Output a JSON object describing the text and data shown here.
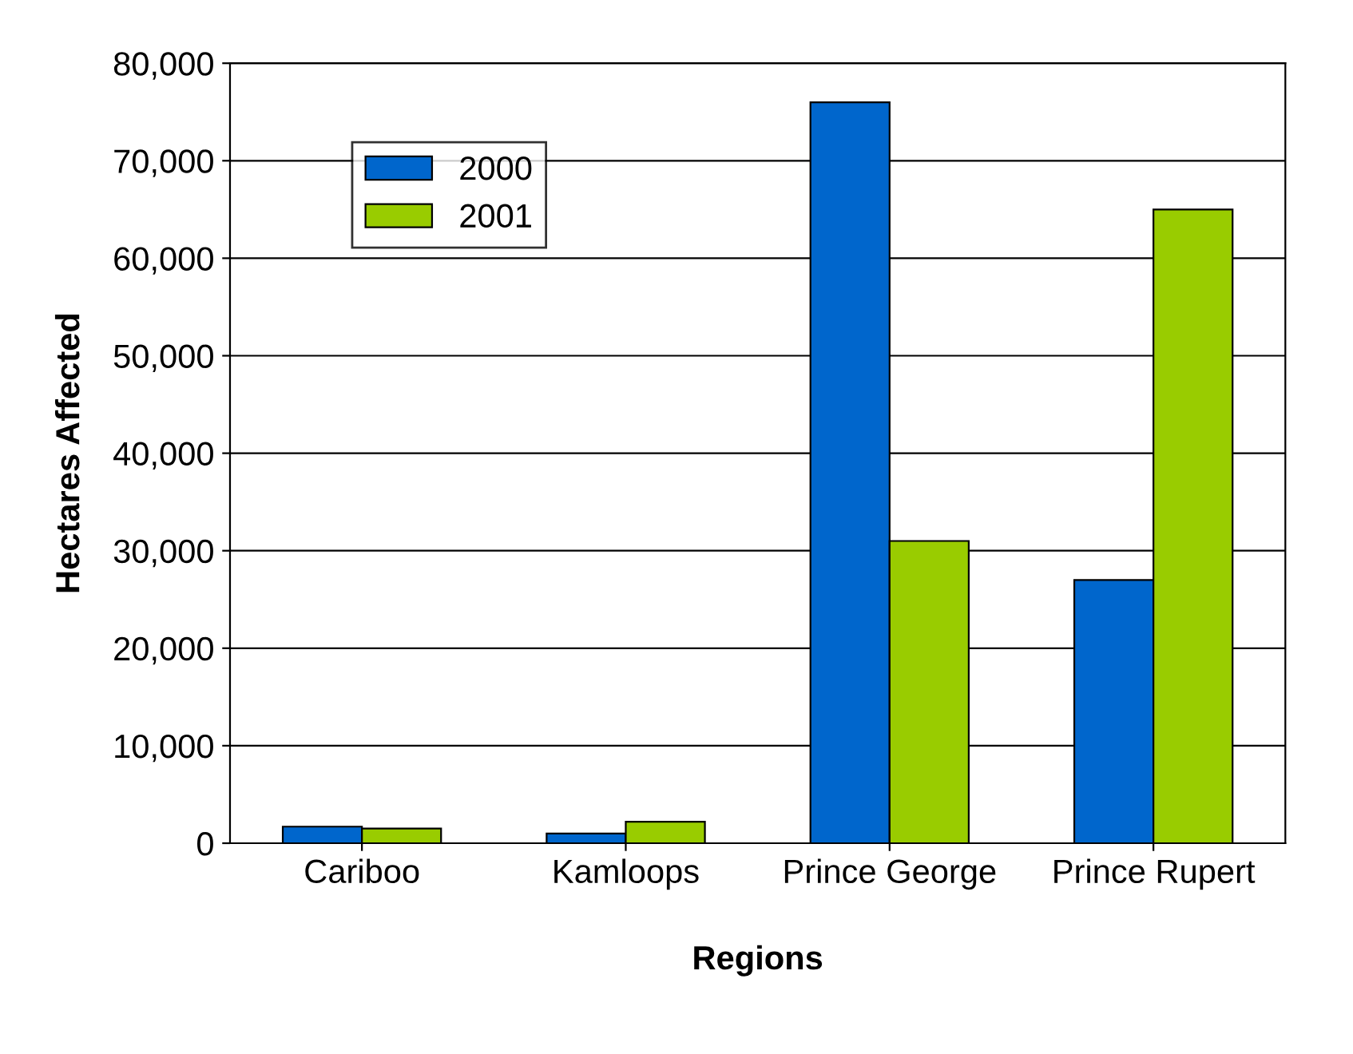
{
  "chart_data": {
    "type": "bar",
    "xlabel": "Regions",
    "ylabel": "Hectares Affected",
    "categories": [
      "Cariboo",
      "Kamloops",
      "Prince George",
      "Prince Rupert"
    ],
    "series": [
      {
        "name": "2000",
        "color": "#0066cc",
        "values": [
          1700,
          1000,
          76000,
          27000
        ]
      },
      {
        "name": "2001",
        "color": "#99cc00",
        "values": [
          1500,
          2200,
          31000,
          65000
        ]
      }
    ],
    "ylim": [
      0,
      80000
    ],
    "yticks": [
      0,
      {
        "value": 10000,
        "label": "10,000"
      },
      {
        "value": 20000,
        "label": "20,000"
      },
      {
        "value": 30000,
        "label": "30,000"
      },
      {
        "value": 40000,
        "label": "40,000"
      },
      {
        "value": 50000,
        "label": "50,000"
      },
      {
        "value": 60000,
        "label": "60,000"
      },
      {
        "value": 70000,
        "label": "70,000"
      },
      {
        "value": 80000,
        "label": "80,000"
      }
    ],
    "grid": "y",
    "legend": "top left"
  }
}
